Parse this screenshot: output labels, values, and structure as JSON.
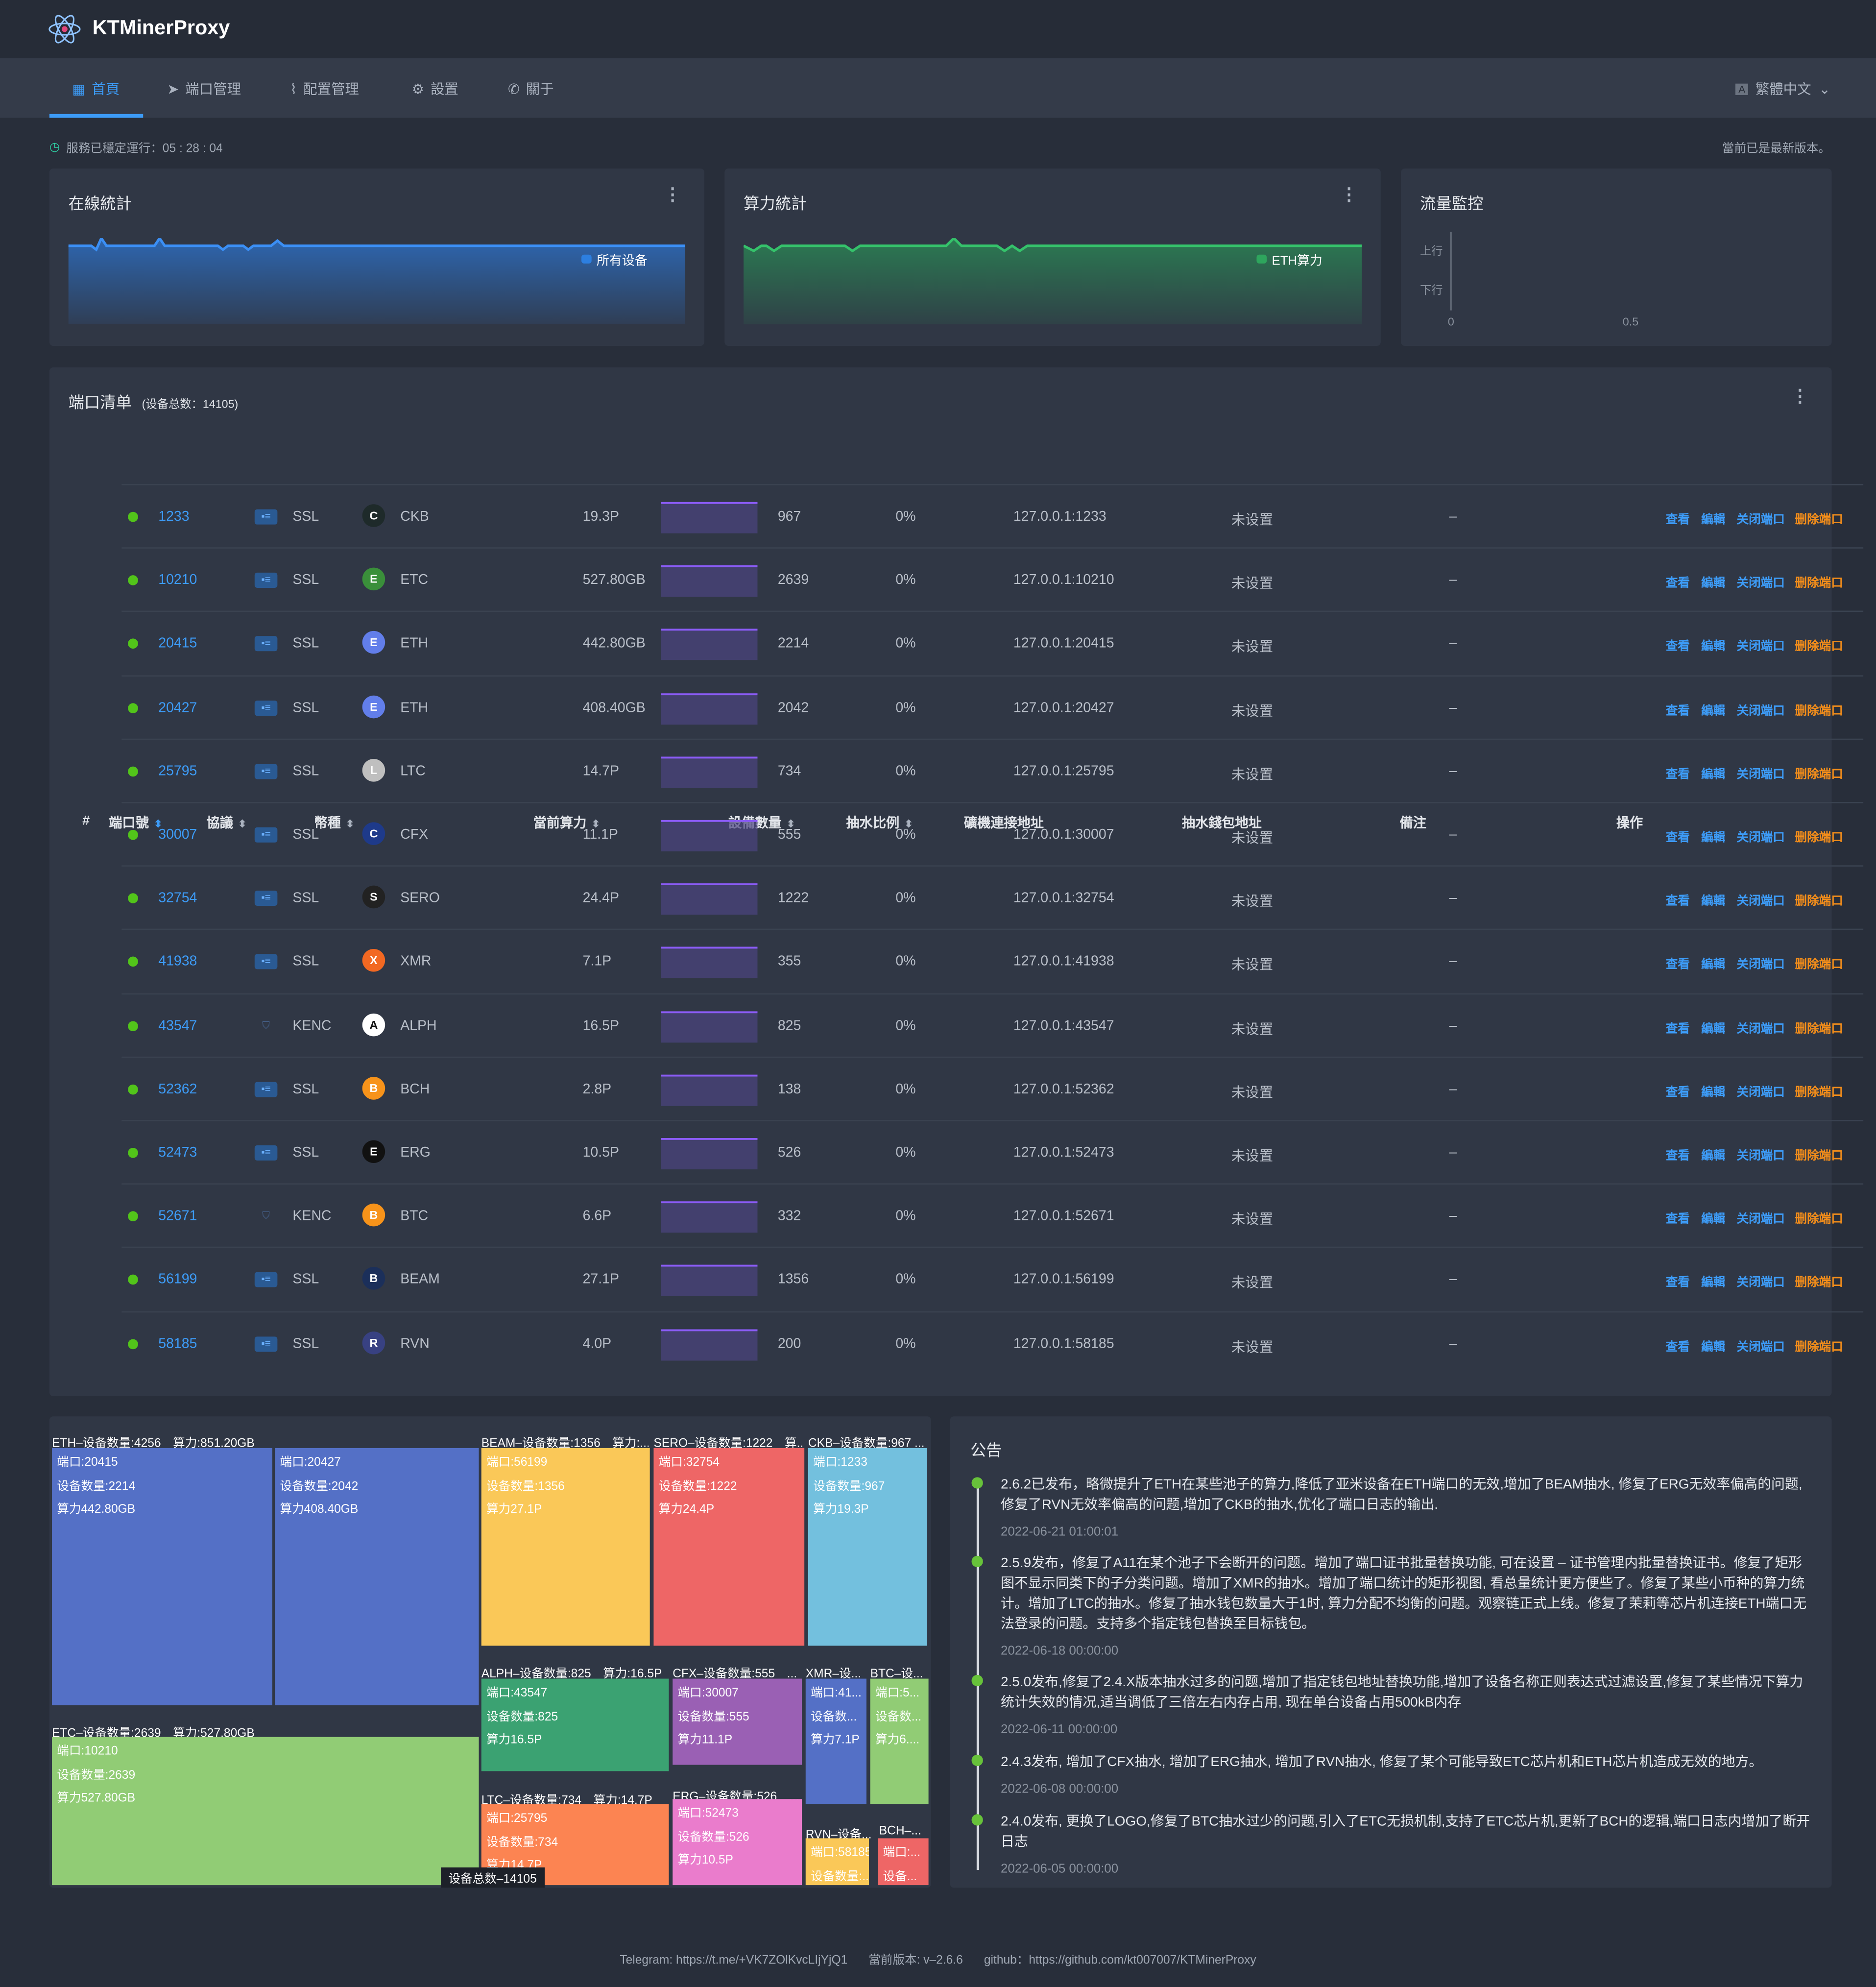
{
  "header": {
    "brand": "KTMinerProxy",
    "lang": "繁體中文"
  },
  "nav": [
    {
      "label": "首頁",
      "icon": "grid-icon"
    },
    {
      "label": "端口管理",
      "icon": "send-icon"
    },
    {
      "label": "配置管理",
      "icon": "paperclip-icon"
    },
    {
      "label": "設置",
      "icon": "gear-icon"
    },
    {
      "label": "關于",
      "icon": "phone-icon"
    }
  ],
  "status": {
    "uptime": "服務已穩定運行：05 : 28 : 04",
    "version_note": "當前已是最新版本。"
  },
  "cards": {
    "online": {
      "title": "在線統計",
      "legend": "所有设备"
    },
    "hash": {
      "title": "算力統計",
      "legend": "ETH算力"
    },
    "traffic": {
      "title": "流量監控",
      "up": "上行",
      "down": "下行",
      "x0": "0",
      "x1": "0.5"
    }
  },
  "ports": {
    "title": "端口清单",
    "total": "(设备总数：14105)",
    "columns": [
      "#",
      "端口號",
      "協議",
      "幣種",
      "當前算力",
      "設備數量",
      "抽水比例",
      "礦機連接地址",
      "抽水錢包地址",
      "備注",
      "操作"
    ],
    "actions": {
      "view": "查看",
      "edit": "編輯",
      "close": "关闭端口",
      "delete": "删除端口"
    },
    "rows": [
      {
        "port": "1233",
        "protocol": "SSL",
        "coin": "CKB",
        "hash": "19.3P",
        "devices": "967",
        "ratio": "0%",
        "addr": "127.0.0.1:1233",
        "wallet": "未设置",
        "remark": "–"
      },
      {
        "port": "10210",
        "protocol": "SSL",
        "coin": "ETC",
        "hash": "527.80GB",
        "devices": "2639",
        "ratio": "0%",
        "addr": "127.0.0.1:10210",
        "wallet": "未设置",
        "remark": "–"
      },
      {
        "port": "20415",
        "protocol": "SSL",
        "coin": "ETH",
        "hash": "442.80GB",
        "devices": "2214",
        "ratio": "0%",
        "addr": "127.0.0.1:20415",
        "wallet": "未设置",
        "remark": "–"
      },
      {
        "port": "20427",
        "protocol": "SSL",
        "coin": "ETH",
        "hash": "408.40GB",
        "devices": "2042",
        "ratio": "0%",
        "addr": "127.0.0.1:20427",
        "wallet": "未设置",
        "remark": "–"
      },
      {
        "port": "25795",
        "protocol": "SSL",
        "coin": "LTC",
        "hash": "14.7P",
        "devices": "734",
        "ratio": "0%",
        "addr": "127.0.0.1:25795",
        "wallet": "未设置",
        "remark": "–"
      },
      {
        "port": "30007",
        "protocol": "SSL",
        "coin": "CFX",
        "hash": "11.1P",
        "devices": "555",
        "ratio": "0%",
        "addr": "127.0.0.1:30007",
        "wallet": "未设置",
        "remark": "–"
      },
      {
        "port": "32754",
        "protocol": "SSL",
        "coin": "SERO",
        "hash": "24.4P",
        "devices": "1222",
        "ratio": "0%",
        "addr": "127.0.0.1:32754",
        "wallet": "未设置",
        "remark": "–"
      },
      {
        "port": "41938",
        "protocol": "SSL",
        "coin": "XMR",
        "hash": "7.1P",
        "devices": "355",
        "ratio": "0%",
        "addr": "127.0.0.1:41938",
        "wallet": "未设置",
        "remark": "–"
      },
      {
        "port": "43547",
        "protocol": "KENC",
        "coin": "ALPH",
        "hash": "16.5P",
        "devices": "825",
        "ratio": "0%",
        "addr": "127.0.0.1:43547",
        "wallet": "未设置",
        "remark": "–"
      },
      {
        "port": "52362",
        "protocol": "SSL",
        "coin": "BCH",
        "hash": "2.8P",
        "devices": "138",
        "ratio": "0%",
        "addr": "127.0.0.1:52362",
        "wallet": "未设置",
        "remark": "–"
      },
      {
        "port": "52473",
        "protocol": "SSL",
        "coin": "ERG",
        "hash": "10.5P",
        "devices": "526",
        "ratio": "0%",
        "addr": "127.0.0.1:52473",
        "wallet": "未设置",
        "remark": "–"
      },
      {
        "port": "52671",
        "protocol": "KENC",
        "coin": "BTC",
        "hash": "6.6P",
        "devices": "332",
        "ratio": "0%",
        "addr": "127.0.0.1:52671",
        "wallet": "未设置",
        "remark": "–"
      },
      {
        "port": "56199",
        "protocol": "SSL",
        "coin": "BEAM",
        "hash": "27.1P",
        "devices": "1356",
        "ratio": "0%",
        "addr": "127.0.0.1:56199",
        "wallet": "未设置",
        "remark": "–"
      },
      {
        "port": "58185",
        "protocol": "SSL",
        "coin": "RVN",
        "hash": "4.0P",
        "devices": "200",
        "ratio": "0%",
        "addr": "127.0.0.1:58185",
        "wallet": "未设置",
        "remark": "–"
      }
    ]
  },
  "coin_colors": {
    "CKB": "#1e2a2a",
    "ETC": "#3a8f3a",
    "ETH": "#627eea",
    "LTC": "#bfbfbf",
    "CFX": "#1e3a8a",
    "SERO": "#222222",
    "XMR": "#f26822",
    "ALPH": "#ffffff",
    "BCH": "#f7931a",
    "ERG": "#111111",
    "BTC": "#f7931a",
    "BEAM": "#1b2f5a",
    "RVN": "#384182"
  },
  "treemap": {
    "groups": [
      "ETH–设备数量:4256　算力:851.20GB",
      "ETC–设备数量:2639　算力:527.80GB",
      "BEAM–设备数量:1356　算力:...",
      "SERO–设备数量:1222　算...",
      "CKB–设备数量:967 ...",
      "ALPH–设备数量:825　算力:16.5P",
      "CFX–设备数量:555　...",
      "XMR–设...",
      "BTC–设...",
      "LTC–设备数量:734　算力:14.7P",
      "ERG–设备数量:526　...",
      "RVN–设备...",
      "BCH–..."
    ],
    "cells": [
      [
        "端口:20415",
        "设备数量:2214",
        "算力442.80GB"
      ],
      [
        "端口:20427",
        "设备数量:2042",
        "算力408.40GB"
      ],
      [
        "端口:10210",
        "设备数量:2639",
        "算力527.80GB"
      ],
      [
        "端口:56199",
        "设备数量:1356",
        "算力27.1P"
      ],
      [
        "端口:32754",
        "设备数量:1222",
        "算力24.4P"
      ],
      [
        "端口:1233",
        "设备数量:967",
        "算力19.3P"
      ],
      [
        "端口:43547",
        "设备数量:825",
        "算力16.5P"
      ],
      [
        "端口:30007",
        "设备数量:555",
        "算力11.1P"
      ],
      [
        "端口:41...",
        "设备数...",
        "算力7.1P"
      ],
      [
        "端口:5...",
        "设备数...",
        "算力6...."
      ],
      [
        "端口:25795",
        "设备数量:734",
        "算力14.7P"
      ],
      [
        "端口:52473",
        "设备数量:526",
        "算力10.5P"
      ],
      [
        "端口:58185",
        "设备数量:...",
        ""
      ],
      [
        "端口:...",
        "设备...",
        ""
      ]
    ],
    "tooltip": "设备总数–14105"
  },
  "announcement": {
    "title": "公告",
    "items": [
      {
        "text": "2.6.2已发布，略微提升了ETH在某些池子的算力,降低了亚米设备在ETH端口的无效,增加了BEAM抽水, 修复了ERG无效率偏高的问题,修复了RVN无效率偏高的问题,增加了CKB的抽水,优化了端口日志的输出.",
        "date": "2022-06-21 01:00:01"
      },
      {
        "text": "2.5.9发布，修复了A11在某个池子下会断开的问题。增加了端口证书批量替换功能, 可在设置 – 证书管理内批量替换证书。修复了矩形图不显示同类下的子分类问题。增加了XMR的抽水。增加了端口统计的矩形视图, 看总量统计更方便些了。修复了某些小币种的算力统计。增加了LTC的抽水。修复了抽水钱包数量大于1时, 算力分配不均衡的问题。观察链正式上线。修复了茉莉等芯片机连接ETH端口无法登录的问题。支持多个指定钱包替换至目标钱包。",
        "date": "2022-06-18 00:00:00"
      },
      {
        "text": "2.5.0发布,修复了2.4.X版本抽水过多的问题,增加了指定钱包地址替换功能,增加了设备名称正则表达式过滤设置,修复了某些情况下算力统计失效的情况,适当调低了三倍左右内存占用, 现在单台设备占用500kB内存",
        "date": "2022-06-11 00:00:00"
      },
      {
        "text": "2.4.3发布, 增加了CFX抽水, 增加了ERG抽水, 增加了RVN抽水, 修复了某个可能导致ETC芯片机和ETH芯片机造成无效的地方。",
        "date": "2022-06-08 00:00:00"
      },
      {
        "text": "2.4.0发布, 更换了LOGO,修复了BTC抽水过少的问题,引入了ETC无损机制,支持了ETC芯片机,更新了BCH的逻辑,端口日志内增加了断开日志",
        "date": "2022-06-05 00:00:00"
      }
    ]
  },
  "footer": {
    "telegram": "Telegram: https://t.me/+VK7ZOlKvcLIjYjQ1",
    "version": "當前版本: v–2.6.6",
    "github": "github：https://github.com/kt007007/KTMinerProxy"
  }
}
